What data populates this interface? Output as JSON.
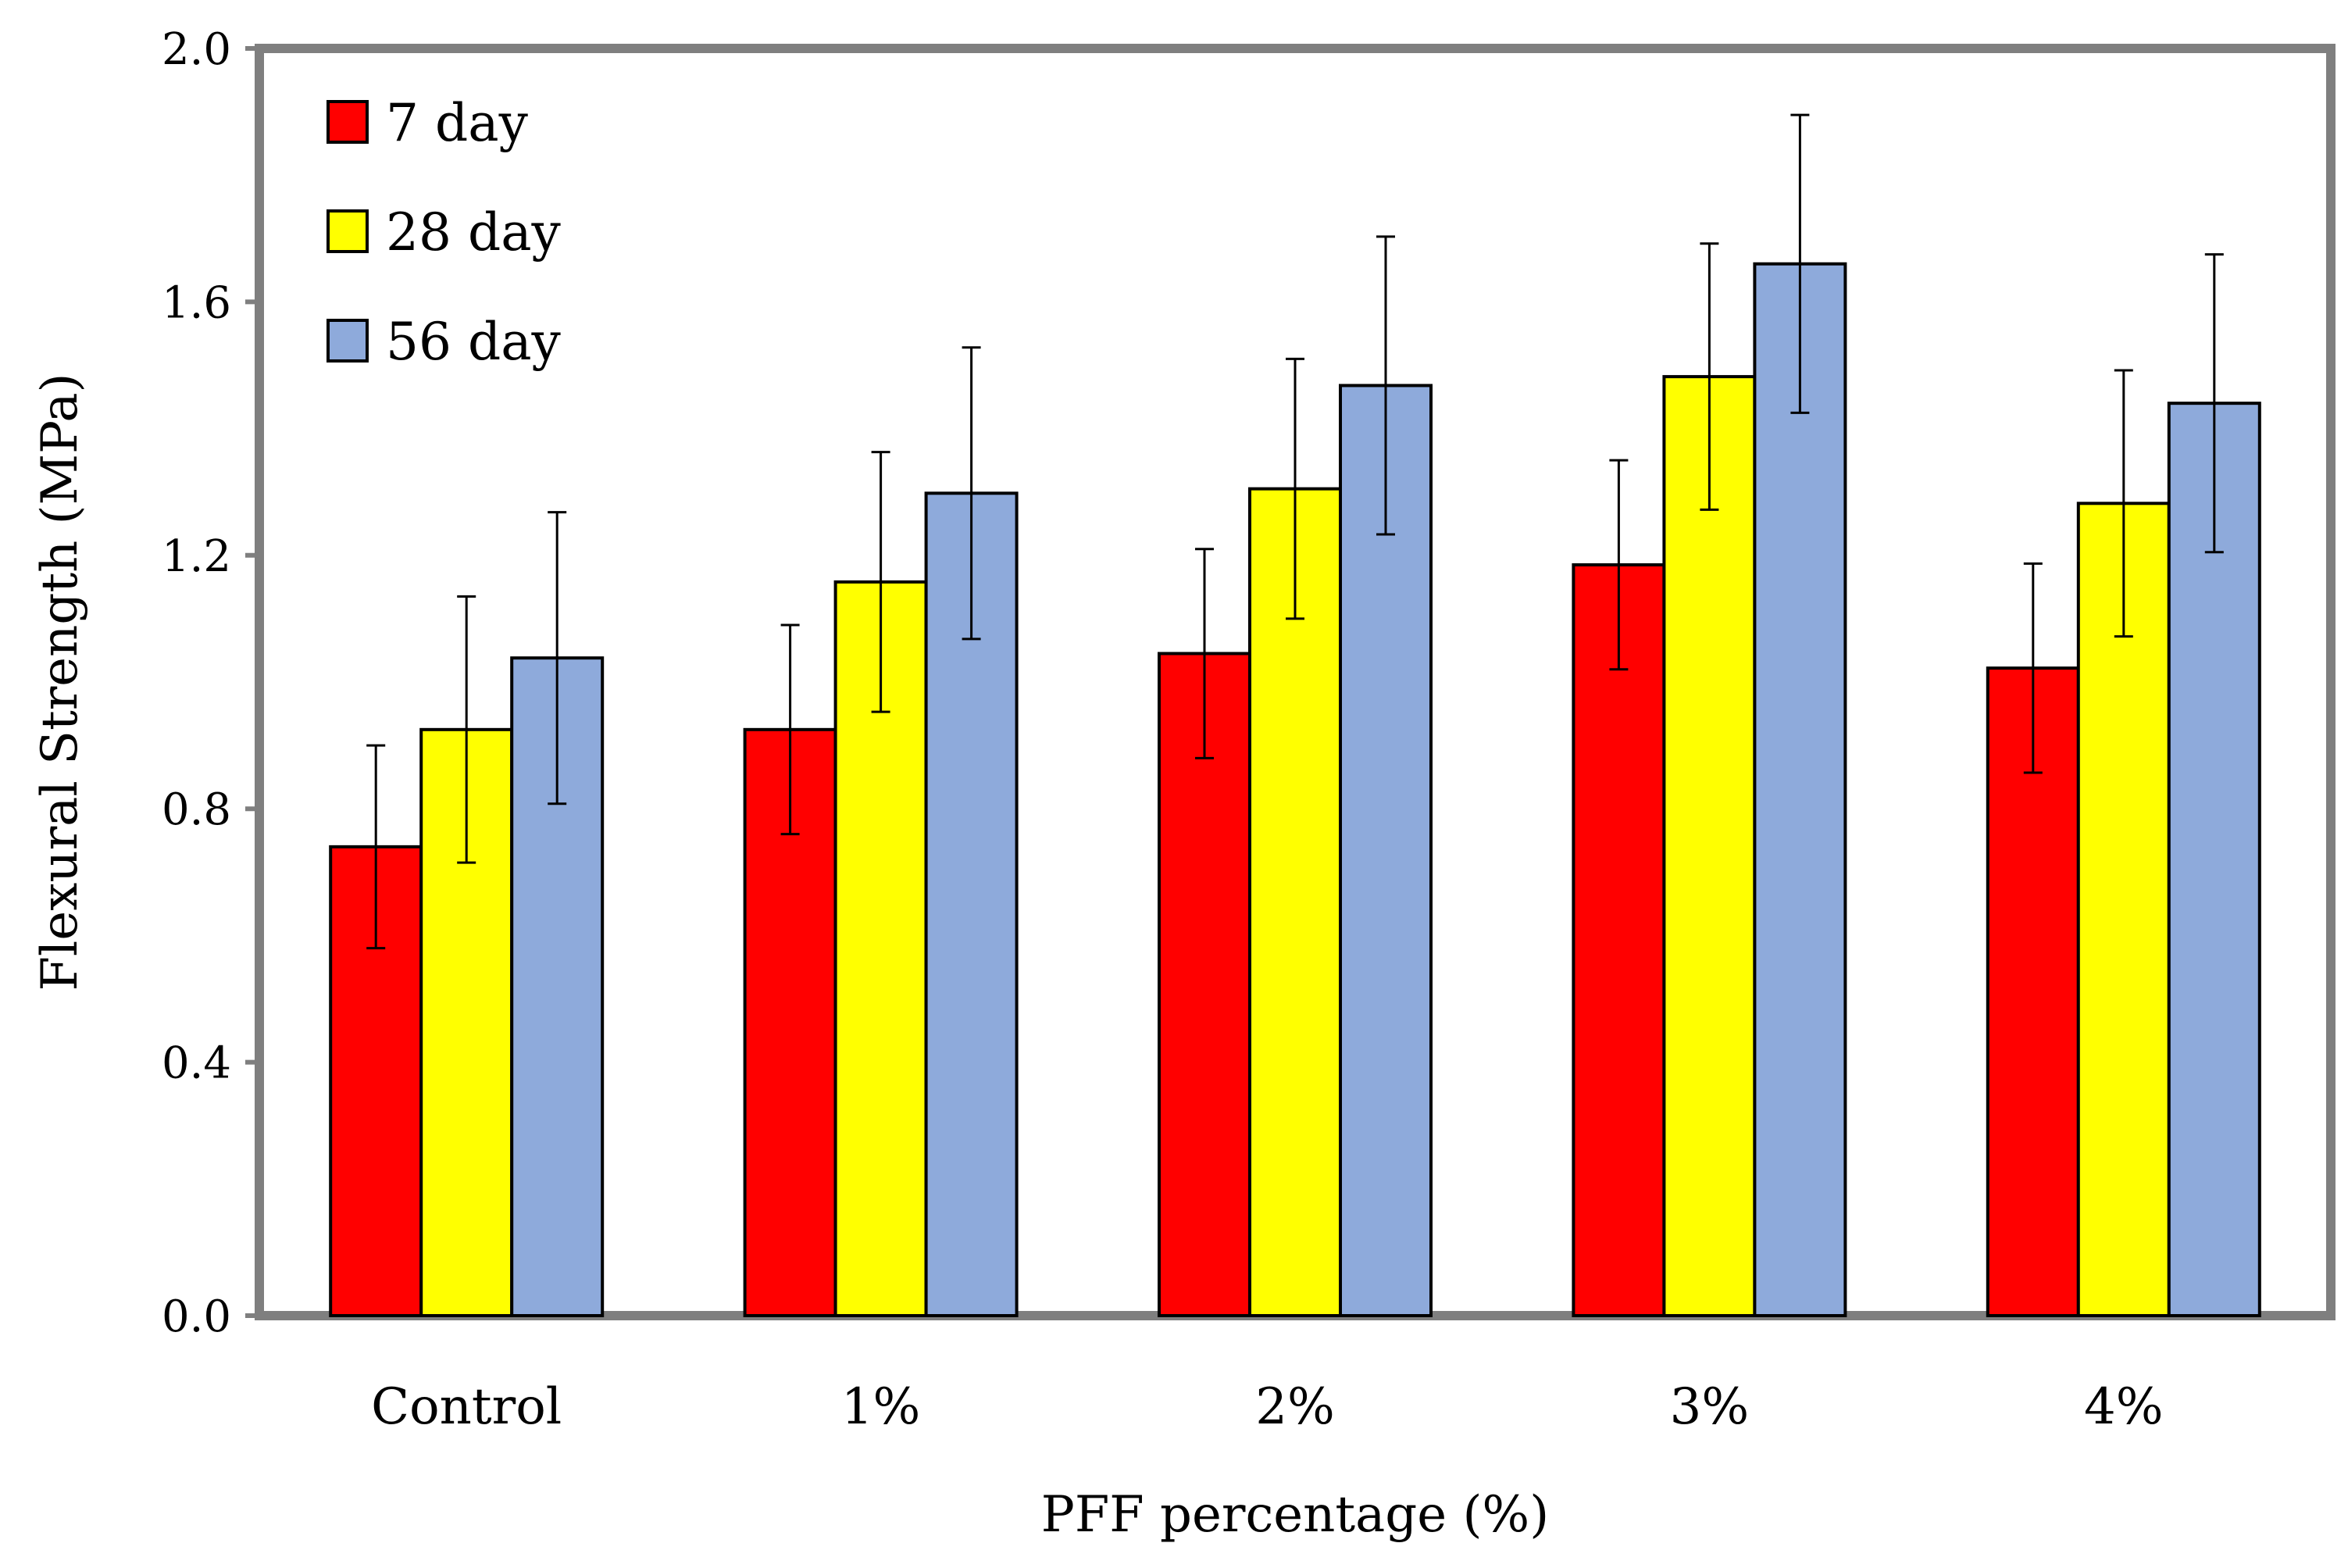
{
  "chart_data": {
    "type": "bar",
    "title": "",
    "xlabel": "PFF percentage (%)",
    "ylabel": "Flexural Strength (MPa)",
    "ylim": [
      0,
      2.0
    ],
    "yticks": [
      "0.0",
      "0.4",
      "0.8",
      "1.2",
      "1.6",
      "2.0"
    ],
    "ytick_values": [
      0,
      0.4,
      0.8,
      1.2,
      1.6,
      2.0
    ],
    "categories": [
      "Control",
      "1%",
      "2%",
      "3%",
      "4%"
    ],
    "legend_position": "top-left",
    "grid": false,
    "series": [
      {
        "name": "7 day",
        "color": "#ff0000",
        "values": [
          0.74,
          0.925,
          1.045,
          1.185,
          1.022
        ],
        "errors": [
          0.16,
          0.165,
          0.165,
          0.165,
          0.165
        ]
      },
      {
        "name": "28 day",
        "color": "#ffff00",
        "values": [
          0.925,
          1.158,
          1.305,
          1.482,
          1.282
        ],
        "errors": [
          0.21,
          0.205,
          0.205,
          0.21,
          0.21
        ]
      },
      {
        "name": "56 day",
        "color": "#8eaadb",
        "values": [
          1.038,
          1.298,
          1.468,
          1.66,
          1.44
        ],
        "errors": [
          0.23,
          0.23,
          0.235,
          0.235,
          0.235
        ]
      }
    ]
  }
}
